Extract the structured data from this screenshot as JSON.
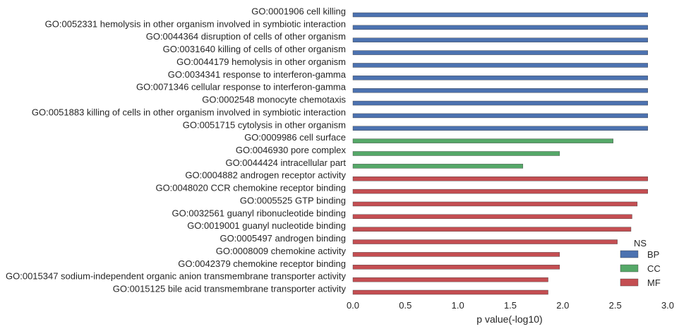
{
  "chart_data": {
    "type": "bar",
    "orientation": "horizontal",
    "xlabel": "p value(-log10)",
    "ylabel": "",
    "title": "",
    "xlim": [
      0,
      3.0
    ],
    "xticks": [
      "0.0",
      "0.5",
      "1.0",
      "1.5",
      "2.0",
      "2.5",
      "3.0"
    ],
    "grid": false,
    "legend_position": "lower-right",
    "legend_title": "NS",
    "colors": {
      "BP": "#4c72b0",
      "CC": "#55a868",
      "MF": "#c44e52"
    },
    "series": [
      {
        "name": "BP",
        "color": "#4c72b0"
      },
      {
        "name": "CC",
        "color": "#55a868"
      },
      {
        "name": "MF",
        "color": "#c44e52"
      }
    ],
    "categories": [
      "GO:0001906 cell killing",
      "GO:0052331 hemolysis in other organism involved in symbiotic interaction",
      "GO:0044364 disruption of cells of other organism",
      "GO:0031640 killing of cells of other organism",
      "GO:0044179 hemolysis in other organism",
      "GO:0034341 response to interferon-gamma",
      "GO:0071346 cellular response to interferon-gamma",
      "GO:0002548 monocyte chemotaxis",
      "GO:0051883 killing of cells in other organism involved in symbiotic interaction",
      "GO:0051715 cytolysis in other organism",
      "GO:0009986 cell surface",
      "GO:0046930 pore complex",
      "GO:0044424 intracellular part",
      "GO:0004882 androgen receptor activity",
      "GO:0048020 CCR chemokine receptor binding",
      "GO:0005525 GTP binding",
      "GO:0032561 guanyl ribonucleotide binding",
      "GO:0019001 guanyl nucleotide binding",
      "GO:0005497 androgen binding",
      "GO:0008009 chemokine activity",
      "GO:0042379 chemokine receptor binding",
      "GO:0015347 sodium-independent organic anion transmembrane transporter activity",
      "GO:0015125 bile acid transmembrane transporter activity"
    ],
    "bars": [
      {
        "category": "GO:0001906 cell killing",
        "group": "BP",
        "value": 2.81
      },
      {
        "category": "GO:0052331 hemolysis in other organism involved in symbiotic interaction",
        "group": "BP",
        "value": 2.81
      },
      {
        "category": "GO:0044364 disruption of cells of other organism",
        "group": "BP",
        "value": 2.81
      },
      {
        "category": "GO:0031640 killing of cells of other organism",
        "group": "BP",
        "value": 2.81
      },
      {
        "category": "GO:0044179 hemolysis in other organism",
        "group": "BP",
        "value": 2.81
      },
      {
        "category": "GO:0034341 response to interferon-gamma",
        "group": "BP",
        "value": 2.81
      },
      {
        "category": "GO:0071346 cellular response to interferon-gamma",
        "group": "BP",
        "value": 2.81
      },
      {
        "category": "GO:0002548 monocyte chemotaxis",
        "group": "BP",
        "value": 2.81
      },
      {
        "category": "GO:0051883 killing of cells in other organism involved in symbiotic interaction",
        "group": "BP",
        "value": 2.81
      },
      {
        "category": "GO:0051715 cytolysis in other organism",
        "group": "BP",
        "value": 2.81
      },
      {
        "category": "GO:0009986 cell surface",
        "group": "CC",
        "value": 2.48
      },
      {
        "category": "GO:0046930 pore complex",
        "group": "CC",
        "value": 1.97
      },
      {
        "category": "GO:0044424 intracellular part",
        "group": "CC",
        "value": 1.62
      },
      {
        "category": "GO:0004882 androgen receptor activity",
        "group": "MF",
        "value": 2.81
      },
      {
        "category": "GO:0048020 CCR chemokine receptor binding",
        "group": "MF",
        "value": 2.81
      },
      {
        "category": "GO:0005525 GTP binding",
        "group": "MF",
        "value": 2.71
      },
      {
        "category": "GO:0032561 guanyl ribonucleotide binding",
        "group": "MF",
        "value": 2.66
      },
      {
        "category": "GO:0019001 guanyl nucleotide binding",
        "group": "MF",
        "value": 2.65
      },
      {
        "category": "GO:0005497 androgen binding",
        "group": "MF",
        "value": 2.52
      },
      {
        "category": "GO:0008009 chemokine activity",
        "group": "MF",
        "value": 1.97
      },
      {
        "category": "GO:0042379 chemokine receptor binding",
        "group": "MF",
        "value": 1.97
      },
      {
        "category": "GO:0015347 sodium-independent organic anion transmembrane transporter activity",
        "group": "MF",
        "value": 1.86
      },
      {
        "category": "GO:0015125 bile acid transmembrane transporter activity",
        "group": "MF",
        "value": 1.86
      }
    ]
  }
}
